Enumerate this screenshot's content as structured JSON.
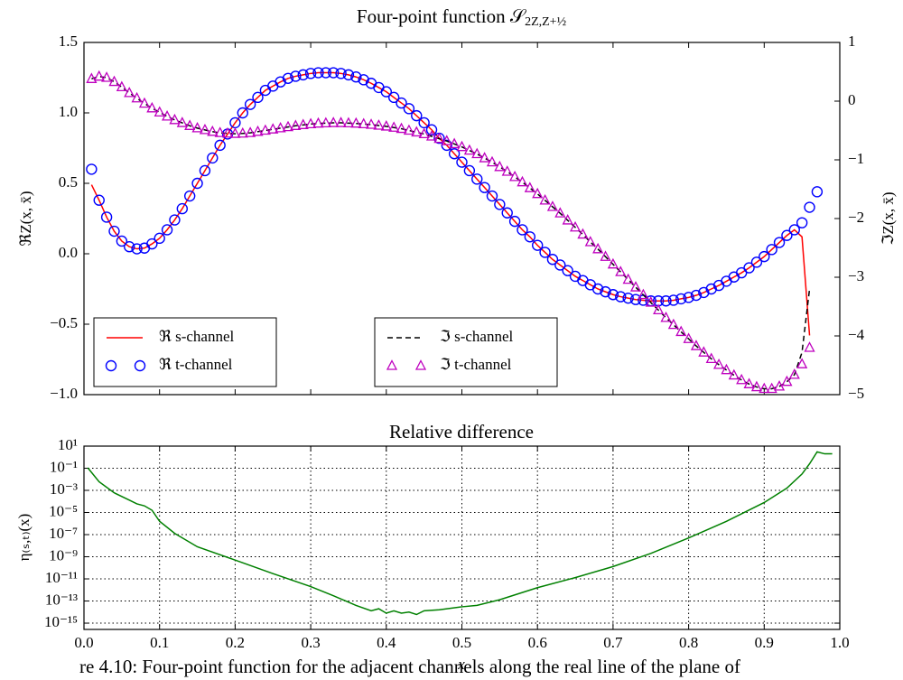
{
  "caption": "re 4.10:  Four-point function for the adjacent channels along the real line of the plane of",
  "chart_data": [
    {
      "type": "line",
      "title": "Four-point function 𝒮",
      "title_subscript": "2Z,Z+½",
      "ylabel": "ℜZ(x, x̄)",
      "y2label": "ℑZ(x, x̄)",
      "xlim": [
        0,
        1
      ],
      "xticks": [
        0,
        0.1,
        0.2,
        0.3,
        0.4,
        0.5,
        0.6,
        0.7,
        0.8,
        0.9,
        1
      ],
      "show_xtick_labels": false,
      "ylim": [
        -1,
        1.5
      ],
      "yticks": [
        {
          "value": -1,
          "label": "−1.0"
        },
        {
          "value": -0.5,
          "label": "−0.5"
        },
        {
          "value": 0,
          "label": "0.0"
        },
        0.5,
        {
          "value": 1,
          "label": "1.0"
        },
        1.5
      ],
      "y2lim": [
        -5,
        1
      ],
      "y2ticks": [
        1,
        0,
        {
          "value": -1,
          "label": "−1"
        },
        {
          "value": -2,
          "label": "−2"
        },
        {
          "value": -3,
          "label": "−3"
        },
        {
          "value": -4,
          "label": "−4"
        },
        {
          "value": -5,
          "label": "−5"
        }
      ],
      "grid": false,
      "x": [
        0.01,
        0.02,
        0.03,
        0.04,
        0.05,
        0.06,
        0.07,
        0.08,
        0.09,
        0.1,
        0.11,
        0.12,
        0.13,
        0.14,
        0.15,
        0.16,
        0.17,
        0.18,
        0.19,
        0.2,
        0.21,
        0.22,
        0.23,
        0.24,
        0.25,
        0.26,
        0.27,
        0.28,
        0.29,
        0.3,
        0.31,
        0.32,
        0.33,
        0.34,
        0.35,
        0.36,
        0.37,
        0.38,
        0.39,
        0.4,
        0.41,
        0.42,
        0.43,
        0.44,
        0.45,
        0.46,
        0.47,
        0.48,
        0.49,
        0.5,
        0.51,
        0.52,
        0.53,
        0.54,
        0.55,
        0.56,
        0.57,
        0.58,
        0.59,
        0.6,
        0.61,
        0.62,
        0.63,
        0.64,
        0.65,
        0.66,
        0.67,
        0.68,
        0.69,
        0.7,
        0.71,
        0.72,
        0.73,
        0.74,
        0.75,
        0.76,
        0.77,
        0.78,
        0.79,
        0.8,
        0.81,
        0.82,
        0.83,
        0.84,
        0.85,
        0.86,
        0.87,
        0.88,
        0.89,
        0.9,
        0.91,
        0.92,
        0.93,
        0.94,
        0.95,
        0.96,
        0.97
      ],
      "series": [
        {
          "name": "ℜ s-channel",
          "color": "#ff0000",
          "style": "solid",
          "axis": "y",
          "legend": "lower left",
          "values": [
            0.49,
            0.38,
            0.26,
            0.16,
            0.09,
            0.05,
            0.035,
            0.04,
            0.07,
            0.11,
            0.17,
            0.24,
            0.32,
            0.41,
            0.5,
            0.59,
            0.68,
            0.77,
            0.85,
            0.93,
            1.0,
            1.06,
            1.11,
            1.16,
            1.19,
            1.22,
            1.245,
            1.26,
            1.27,
            1.28,
            1.285,
            1.285,
            1.285,
            1.28,
            1.27,
            1.255,
            1.235,
            1.21,
            1.18,
            1.15,
            1.11,
            1.07,
            1.03,
            0.98,
            0.93,
            0.88,
            0.82,
            0.77,
            0.71,
            0.65,
            0.59,
            0.53,
            0.47,
            0.41,
            0.35,
            0.29,
            0.23,
            0.17,
            0.12,
            0.06,
            0.01,
            -0.04,
            -0.08,
            -0.12,
            -0.16,
            -0.19,
            -0.22,
            -0.25,
            -0.27,
            -0.29,
            -0.305,
            -0.315,
            -0.325,
            -0.33,
            -0.335,
            -0.335,
            -0.335,
            -0.33,
            -0.32,
            -0.31,
            -0.295,
            -0.275,
            -0.25,
            -0.225,
            -0.195,
            -0.165,
            -0.135,
            -0.1,
            -0.06,
            -0.02,
            0.03,
            0.08,
            0.13,
            0.17,
            0.12,
            -0.58,
            null
          ]
        },
        {
          "name": "ℜ t-channel",
          "color": "#0000ff",
          "style": "circle",
          "axis": "y",
          "legend": "lower left",
          "values": [
            0.6,
            0.38,
            0.26,
            0.16,
            0.09,
            0.05,
            0.035,
            0.04,
            0.07,
            0.11,
            0.17,
            0.24,
            0.32,
            0.41,
            0.5,
            0.59,
            0.68,
            0.77,
            0.85,
            0.93,
            1.0,
            1.06,
            1.11,
            1.16,
            1.19,
            1.22,
            1.245,
            1.26,
            1.27,
            1.28,
            1.285,
            1.285,
            1.285,
            1.28,
            1.27,
            1.255,
            1.235,
            1.21,
            1.18,
            1.15,
            1.11,
            1.07,
            1.03,
            0.98,
            0.93,
            0.88,
            0.82,
            0.77,
            0.71,
            0.65,
            0.59,
            0.53,
            0.47,
            0.41,
            0.35,
            0.29,
            0.23,
            0.17,
            0.12,
            0.06,
            0.01,
            -0.04,
            -0.08,
            -0.12,
            -0.16,
            -0.19,
            -0.22,
            -0.25,
            -0.27,
            -0.29,
            -0.305,
            -0.315,
            -0.325,
            -0.33,
            -0.335,
            -0.335,
            -0.335,
            -0.33,
            -0.32,
            -0.31,
            -0.295,
            -0.275,
            -0.25,
            -0.225,
            -0.195,
            -0.165,
            -0.135,
            -0.1,
            -0.06,
            -0.02,
            0.03,
            0.08,
            0.13,
            0.17,
            0.22,
            0.33,
            0.44
          ]
        },
        {
          "name": "ℑ s-channel",
          "color": "#000000",
          "style": "dashed",
          "axis": "y2",
          "legend": "lower center",
          "values": [
            0.38,
            0.42,
            0.4,
            0.33,
            0.24,
            0.14,
            0.05,
            -0.04,
            -0.12,
            -0.19,
            -0.26,
            -0.32,
            -0.37,
            -0.42,
            -0.46,
            -0.49,
            -0.52,
            -0.54,
            -0.55,
            -0.555,
            -0.55,
            -0.54,
            -0.52,
            -0.5,
            -0.48,
            -0.46,
            -0.44,
            -0.42,
            -0.405,
            -0.39,
            -0.38,
            -0.375,
            -0.37,
            -0.37,
            -0.375,
            -0.38,
            -0.39,
            -0.4,
            -0.415,
            -0.43,
            -0.45,
            -0.47,
            -0.5,
            -0.53,
            -0.56,
            -0.6,
            -0.64,
            -0.68,
            -0.73,
            -0.78,
            -0.84,
            -0.9,
            -0.97,
            -1.04,
            -1.12,
            -1.2,
            -1.29,
            -1.38,
            -1.48,
            -1.58,
            -1.69,
            -1.8,
            -1.91,
            -2.03,
            -2.15,
            -2.27,
            -2.4,
            -2.52,
            -2.65,
            -2.78,
            -2.91,
            -3.04,
            -3.17,
            -3.3,
            -3.43,
            -3.56,
            -3.69,
            -3.81,
            -3.93,
            -4.05,
            -4.17,
            -4.28,
            -4.39,
            -4.49,
            -4.58,
            -4.67,
            -4.75,
            -4.82,
            -4.87,
            -4.9,
            -4.9,
            -4.86,
            -4.78,
            -4.66,
            -4.28,
            -3.2,
            null
          ]
        },
        {
          "name": "ℑ t-channel",
          "color": "#bf00bf",
          "style": "triangle",
          "axis": "y2",
          "legend": "lower center",
          "values": [
            0.38,
            0.42,
            0.4,
            0.33,
            0.24,
            0.14,
            0.05,
            -0.04,
            -0.12,
            -0.19,
            -0.26,
            -0.32,
            -0.37,
            -0.42,
            -0.46,
            -0.49,
            -0.52,
            -0.54,
            -0.55,
            -0.555,
            -0.55,
            -0.54,
            -0.52,
            -0.5,
            -0.48,
            -0.46,
            -0.44,
            -0.42,
            -0.405,
            -0.39,
            -0.38,
            -0.375,
            -0.37,
            -0.37,
            -0.375,
            -0.38,
            -0.39,
            -0.4,
            -0.415,
            -0.43,
            -0.45,
            -0.47,
            -0.5,
            -0.53,
            -0.56,
            -0.6,
            -0.64,
            -0.68,
            -0.73,
            -0.78,
            -0.84,
            -0.9,
            -0.97,
            -1.04,
            -1.12,
            -1.2,
            -1.29,
            -1.38,
            -1.48,
            -1.58,
            -1.69,
            -1.8,
            -1.91,
            -2.03,
            -2.15,
            -2.27,
            -2.4,
            -2.52,
            -2.65,
            -2.78,
            -2.91,
            -3.04,
            -3.17,
            -3.3,
            -3.43,
            -3.56,
            -3.69,
            -3.81,
            -3.93,
            -4.05,
            -4.17,
            -4.28,
            -4.39,
            -4.49,
            -4.58,
            -4.67,
            -4.75,
            -4.82,
            -4.87,
            -4.9,
            -4.9,
            -4.86,
            -4.78,
            -4.66,
            -4.48,
            -4.2,
            null
          ]
        }
      ]
    },
    {
      "type": "line",
      "title": "Relative difference",
      "ylabel": "η₍ₛ,ₜ₎(x)",
      "xlabel": "x",
      "xlim": [
        0,
        1
      ],
      "xticks": [
        {
          "value": 0,
          "label": "0.0"
        },
        0.1,
        0.2,
        0.3,
        0.4,
        0.5,
        0.6,
        0.7,
        0.8,
        0.9,
        {
          "value": 1,
          "label": "1.0"
        }
      ],
      "show_xtick_labels": true,
      "ylim": [
        2.7e-16,
        10
      ],
      "log_y": true,
      "grid": true,
      "yticks": [
        {
          "value": 10,
          "label": "10¹"
        },
        {
          "value": 0.1,
          "label": "10⁻¹"
        },
        {
          "value": 0.001,
          "label": "10⁻³"
        },
        {
          "value": 1e-05,
          "label": "10⁻⁵"
        },
        {
          "value": 1e-07,
          "label": "10⁻⁷"
        },
        {
          "value": 1e-09,
          "label": "10⁻⁹"
        },
        {
          "value": 1e-11,
          "label": "10⁻¹¹"
        },
        {
          "value": 1e-13,
          "label": "10⁻¹³"
        },
        {
          "value": 1e-15,
          "label": "10⁻¹⁵"
        }
      ],
      "x": [
        0.005,
        0.02,
        0.04,
        0.06,
        0.07,
        0.08,
        0.09,
        0.1,
        0.12,
        0.15,
        0.2,
        0.25,
        0.3,
        0.33,
        0.36,
        0.38,
        0.39,
        0.4,
        0.41,
        0.42,
        0.43,
        0.44,
        0.45,
        0.47,
        0.5,
        0.52,
        0.55,
        0.6,
        0.65,
        0.7,
        0.75,
        0.8,
        0.85,
        0.9,
        0.93,
        0.95,
        0.96,
        0.97,
        0.98,
        0.99
      ],
      "series": [
        {
          "color": "#008000",
          "style": "solid",
          "axis": "y",
          "values": [
            0.11,
            0.006,
            0.0006,
            0.00013,
            6e-05,
            4e-05,
            1.6e-05,
            1.6e-06,
            1.3e-07,
            8e-09,
            5e-10,
            3e-11,
            2e-12,
            3e-13,
            4e-14,
            1.3e-14,
            2e-14,
            8e-15,
            1.3e-14,
            8e-15,
            1e-14,
            6e-15,
            1.3e-14,
            1.6e-14,
            3e-14,
            4e-14,
            1.3e-13,
            1.6e-12,
            1.3e-11,
            1.3e-10,
            2e-09,
            5e-08,
            1.6e-06,
            8e-05,
            0.0016,
            0.03,
            0.25,
            3,
            2,
            2
          ]
        }
      ]
    }
  ]
}
